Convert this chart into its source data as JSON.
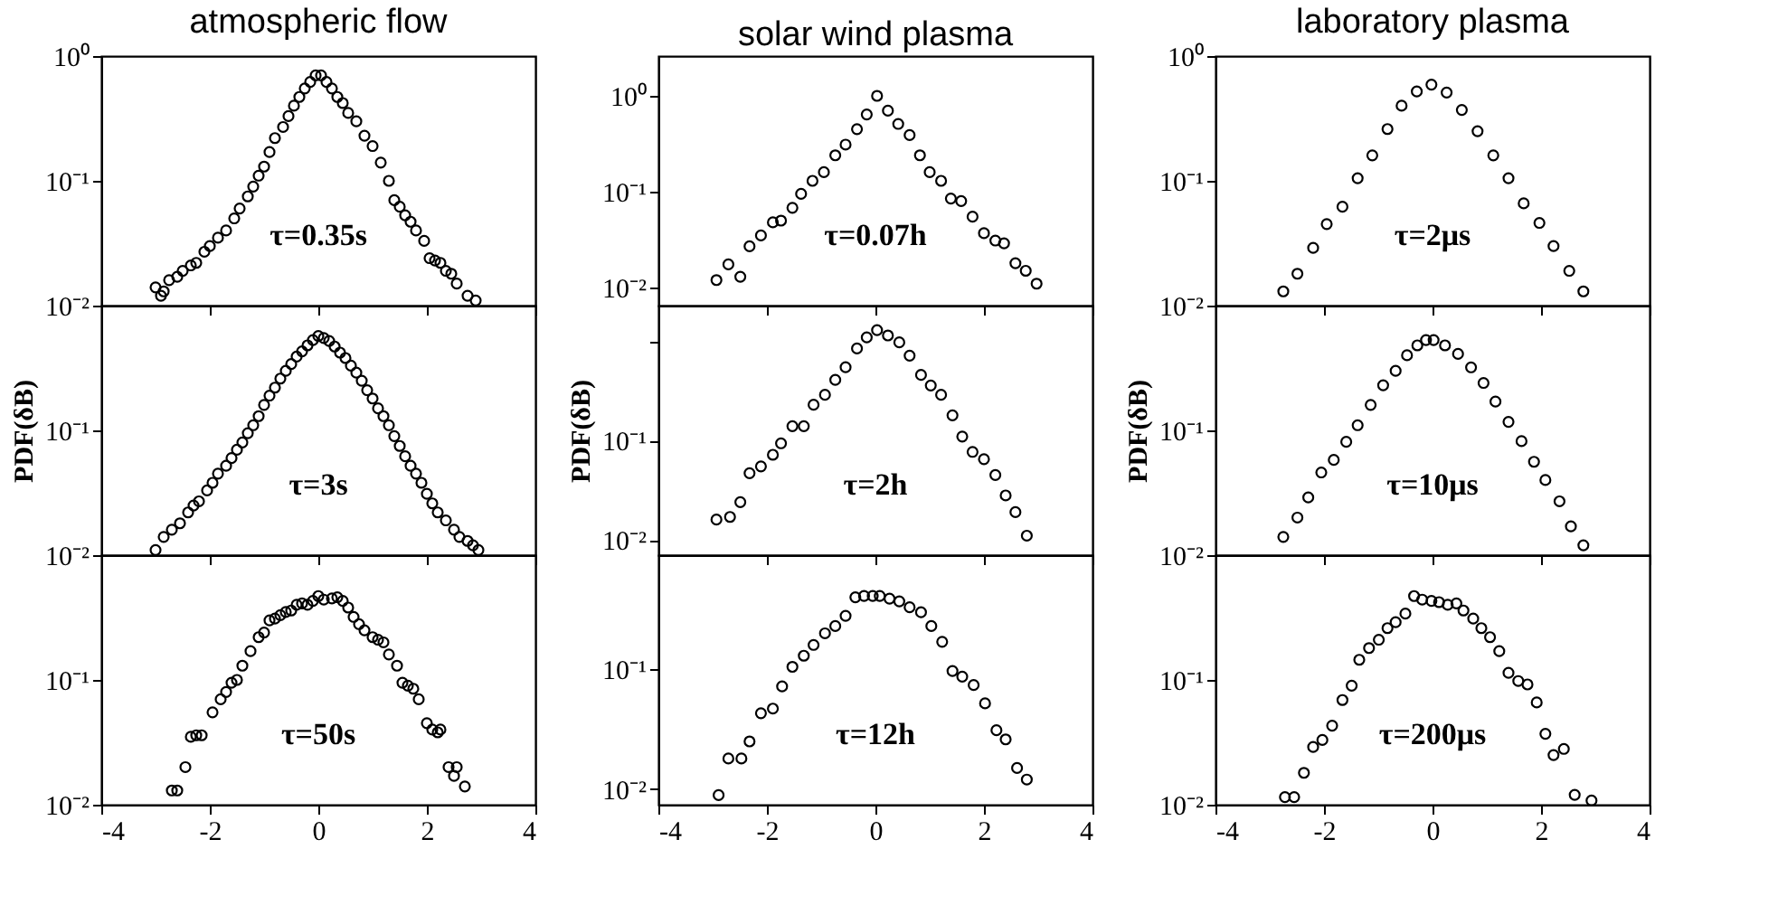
{
  "chart_data": [
    {
      "type": "scatter",
      "title": "atmospheric flow",
      "annotations": [
        "τ=0.35s"
      ],
      "marker": "circle",
      "tick_labels": "y",
      "xlim": [
        -4,
        4
      ],
      "xticks": [
        -4,
        -2,
        0,
        2,
        4
      ],
      "ylim": [
        0.01,
        1
      ],
      "log": true,
      "yticks": [
        {
          "value": 1,
          "label": "10⁰"
        },
        {
          "value": 0.1,
          "label": "10⁻¹"
        },
        {
          "value": 0.01,
          "label": "10⁻²"
        }
      ],
      "series": [
        {
          "color": "#000000",
          "x": [
            -3.0,
            -2.9,
            -2.85,
            -2.75,
            -2.6,
            -2.5,
            -2.35,
            -2.25,
            -2.1,
            -2.0,
            -1.85,
            -1.7,
            -1.55,
            -1.45,
            -1.3,
            -1.2,
            -1.1,
            -1.0,
            -0.9,
            -0.8,
            -0.65,
            -0.55,
            -0.45,
            -0.35,
            -0.25,
            -0.15,
            -0.05,
            0.05,
            0.15,
            0.25,
            0.35,
            0.45,
            0.55,
            0.7,
            0.85,
            1.0,
            1.15,
            1.3,
            1.4,
            1.5,
            1.6,
            1.7,
            1.8,
            1.95,
            2.05,
            2.15,
            2.25,
            2.35,
            2.45,
            2.55,
            2.75,
            2.9
          ],
          "values": [
            0.014,
            0.012,
            0.013,
            0.016,
            0.017,
            0.019,
            0.021,
            0.022,
            0.027,
            0.03,
            0.035,
            0.04,
            0.05,
            0.06,
            0.075,
            0.09,
            0.11,
            0.13,
            0.17,
            0.22,
            0.27,
            0.33,
            0.4,
            0.47,
            0.55,
            0.62,
            0.7,
            0.7,
            0.62,
            0.55,
            0.47,
            0.42,
            0.35,
            0.3,
            0.23,
            0.19,
            0.14,
            0.1,
            0.07,
            0.062,
            0.053,
            0.047,
            0.04,
            0.033,
            0.024,
            0.023,
            0.022,
            0.019,
            0.018,
            0.015,
            0.012,
            0.011
          ]
        }
      ]
    },
    {
      "type": "scatter",
      "title": "solar wind plasma",
      "annotations": [
        "τ=0.07h"
      ],
      "marker": "circle",
      "tick_labels": "y",
      "xlim": [
        -4,
        4
      ],
      "xticks": [
        -4,
        -2,
        0,
        2,
        4
      ],
      "ylim": [
        0.0065,
        2.6
      ],
      "log": true,
      "yticks": [
        {
          "value": 1,
          "label": "10⁰"
        },
        {
          "value": 0.1,
          "label": "10⁻¹"
        },
        {
          "value": 0.01,
          "label": "10⁻²"
        }
      ],
      "series": [
        {
          "color": "#000000",
          "x": [
            -2.93,
            -2.71,
            -2.49,
            -2.32,
            -2.11,
            -1.89,
            -1.74,
            -1.53,
            -1.37,
            -1.16,
            -0.95,
            -0.74,
            -0.55,
            -0.34,
            -0.16,
            0.03,
            0.23,
            0.42,
            0.63,
            0.82,
            1.0,
            1.21,
            1.39,
            1.58,
            1.79,
            2.0,
            2.21,
            2.37,
            2.58,
            2.77,
            2.97
          ],
          "values": [
            0.012,
            0.0175,
            0.013,
            0.027,
            0.035,
            0.048,
            0.05,
            0.068,
            0.095,
            0.13,
            0.16,
            0.24,
            0.31,
            0.45,
            0.64,
            1.0,
            0.7,
            0.51,
            0.39,
            0.24,
            0.16,
            0.13,
            0.085,
            0.08,
            0.055,
            0.037,
            0.031,
            0.029,
            0.018,
            0.015,
            0.011
          ]
        }
      ]
    },
    {
      "type": "scatter",
      "title": "laboratory plasma",
      "annotations": [
        "τ=2μs"
      ],
      "marker": "circle",
      "tick_labels": "y",
      "xlim": [
        -4,
        4
      ],
      "xticks": [
        -4,
        -2,
        0,
        2,
        4
      ],
      "ylim": [
        0.01,
        1
      ],
      "log": true,
      "yticks": [
        {
          "value": 1,
          "label": "10⁰"
        },
        {
          "value": 0.1,
          "label": "10⁻¹"
        },
        {
          "value": 0.01,
          "label": "10⁻²"
        }
      ],
      "series": [
        {
          "color": "#000000",
          "x": [
            -2.75,
            -2.49,
            -2.2,
            -1.95,
            -1.66,
            -1.38,
            -1.11,
            -0.83,
            -0.57,
            -0.29,
            -0.02,
            0.26,
            0.54,
            0.83,
            1.12,
            1.4,
            1.68,
            1.97,
            2.23,
            2.52,
            2.78
          ],
          "values": [
            0.013,
            0.018,
            0.029,
            0.045,
            0.062,
            0.105,
            0.16,
            0.26,
            0.4,
            0.52,
            0.59,
            0.51,
            0.37,
            0.25,
            0.16,
            0.105,
            0.066,
            0.046,
            0.03,
            0.019,
            0.013
          ]
        }
      ]
    },
    {
      "type": "scatter",
      "ylabel": "PDF(δB)",
      "annotations": [
        "τ=3s"
      ],
      "marker": "circle",
      "tick_labels": "y",
      "xlim": [
        -4,
        4
      ],
      "xticks": [
        -4,
        -2,
        0,
        2,
        4
      ],
      "ylim": [
        0.01,
        1
      ],
      "log": true,
      "yticks": [
        {
          "value": 1,
          "label": null
        },
        {
          "value": 0.1,
          "label": "10⁻¹"
        },
        {
          "value": 0.01,
          "label": "10⁻²"
        }
      ],
      "series": [
        {
          "color": "#000000",
          "x": [
            -3.0,
            -2.85,
            -2.7,
            -2.55,
            -2.4,
            -2.3,
            -2.2,
            -2.05,
            -1.95,
            -1.85,
            -1.7,
            -1.6,
            -1.5,
            -1.4,
            -1.3,
            -1.2,
            -1.1,
            -1.0,
            -0.9,
            -0.8,
            -0.7,
            -0.6,
            -0.5,
            -0.4,
            -0.3,
            -0.2,
            -0.1,
            0,
            0.1,
            0.2,
            0.3,
            0.4,
            0.5,
            0.6,
            0.7,
            0.8,
            0.9,
            1.0,
            1.1,
            1.2,
            1.3,
            1.4,
            1.5,
            1.6,
            1.7,
            1.8,
            1.9,
            2.0,
            2.1,
            2.2,
            2.35,
            2.5,
            2.6,
            2.75,
            2.85,
            2.95
          ],
          "values": [
            0.011,
            0.014,
            0.016,
            0.018,
            0.022,
            0.025,
            0.027,
            0.033,
            0.038,
            0.045,
            0.052,
            0.06,
            0.07,
            0.08,
            0.095,
            0.11,
            0.13,
            0.16,
            0.19,
            0.22,
            0.26,
            0.3,
            0.34,
            0.39,
            0.43,
            0.48,
            0.53,
            0.57,
            0.55,
            0.52,
            0.47,
            0.42,
            0.38,
            0.33,
            0.29,
            0.25,
            0.21,
            0.18,
            0.15,
            0.13,
            0.11,
            0.09,
            0.075,
            0.062,
            0.052,
            0.045,
            0.038,
            0.031,
            0.026,
            0.022,
            0.019,
            0.016,
            0.014,
            0.013,
            0.012,
            0.011
          ]
        }
      ]
    },
    {
      "type": "scatter",
      "ylabel": "PDF(δB)",
      "annotations": [
        "τ=2h"
      ],
      "marker": "circle",
      "tick_labels": "y",
      "xlim": [
        -4,
        4
      ],
      "xticks": [
        -4,
        -2,
        0,
        2,
        4
      ],
      "ylim": [
        0.007,
        2.3
      ],
      "log": true,
      "yticks": [
        {
          "value": 1,
          "label": null
        },
        {
          "value": 0.1,
          "label": "10⁻¹"
        },
        {
          "value": 0.01,
          "label": "10⁻²"
        }
      ],
      "series": [
        {
          "color": "#000000",
          "x": [
            -2.93,
            -2.68,
            -2.49,
            -2.32,
            -2.11,
            -1.89,
            -1.74,
            -1.53,
            -1.32,
            -1.14,
            -0.93,
            -0.74,
            -0.55,
            -0.34,
            -0.16,
            0.03,
            0.23,
            0.44,
            0.63,
            0.84,
            1.02,
            1.21,
            1.42,
            1.6,
            1.79,
            2.0,
            2.21,
            2.4,
            2.58,
            2.79
          ],
          "values": [
            0.016,
            0.017,
            0.024,
            0.047,
            0.055,
            0.072,
            0.094,
            0.14,
            0.14,
            0.23,
            0.29,
            0.41,
            0.55,
            0.85,
            1.1,
            1.3,
            1.15,
            0.98,
            0.72,
            0.46,
            0.36,
            0.29,
            0.18,
            0.11,
            0.077,
            0.065,
            0.045,
            0.028,
            0.019,
            0.011
          ]
        }
      ]
    },
    {
      "type": "scatter",
      "ylabel": "PDF(δB)",
      "annotations": [
        "τ=10μs"
      ],
      "marker": "circle",
      "tick_labels": "y",
      "xlim": [
        -4,
        4
      ],
      "xticks": [
        -4,
        -2,
        0,
        2,
        4
      ],
      "ylim": [
        0.01,
        1
      ],
      "log": true,
      "yticks": [
        {
          "value": 1,
          "label": null
        },
        {
          "value": 0.1,
          "label": "10⁻¹"
        },
        {
          "value": 0.01,
          "label": "10⁻²"
        }
      ],
      "series": [
        {
          "color": "#000000",
          "x": [
            -2.75,
            -2.49,
            -2.29,
            -2.05,
            -1.82,
            -1.59,
            -1.38,
            -1.14,
            -0.91,
            -0.68,
            -0.47,
            -0.28,
            -0.12,
            0.02,
            0.23,
            0.47,
            0.71,
            0.94,
            1.16,
            1.4,
            1.64,
            1.87,
            2.08,
            2.34,
            2.55,
            2.78
          ],
          "values": [
            0.014,
            0.02,
            0.029,
            0.046,
            0.058,
            0.081,
            0.11,
            0.16,
            0.23,
            0.3,
            0.4,
            0.48,
            0.53,
            0.53,
            0.48,
            0.41,
            0.32,
            0.24,
            0.17,
            0.117,
            0.082,
            0.056,
            0.04,
            0.027,
            0.017,
            0.012
          ]
        }
      ]
    },
    {
      "type": "scatter",
      "annotations": [
        "τ=50s"
      ],
      "marker": "circle",
      "xlim": [
        -4,
        4
      ],
      "xticks": [
        -4,
        -2,
        0,
        2,
        4
      ],
      "ylim": [
        0.01,
        1
      ],
      "log": true,
      "yticks": [
        {
          "value": 1,
          "label": null
        },
        {
          "value": 0.1,
          "label": "10⁻¹"
        },
        {
          "value": 0.01,
          "label": "10⁻²"
        }
      ],
      "series": [
        {
          "color": "#000000",
          "x": [
            -2.7,
            -2.6,
            -2.45,
            -2.35,
            -2.25,
            -2.15,
            -1.95,
            -1.8,
            -1.7,
            -1.6,
            -1.5,
            -1.4,
            -1.25,
            -1.1,
            -1.0,
            -0.9,
            -0.8,
            -0.7,
            -0.6,
            -0.5,
            -0.4,
            -0.3,
            -0.2,
            -0.1,
            0.0,
            0.1,
            0.25,
            0.35,
            0.45,
            0.55,
            0.65,
            0.75,
            0.85,
            1.0,
            1.1,
            1.2,
            1.3,
            1.45,
            1.55,
            1.65,
            1.75,
            1.85,
            2.0,
            2.1,
            2.2,
            2.25,
            2.4,
            2.5,
            2.55,
            2.7
          ],
          "values": [
            0.013,
            0.013,
            0.02,
            0.035,
            0.036,
            0.036,
            0.055,
            0.07,
            0.08,
            0.095,
            0.1,
            0.13,
            0.17,
            0.22,
            0.24,
            0.3,
            0.31,
            0.33,
            0.35,
            0.36,
            0.4,
            0.41,
            0.4,
            0.43,
            0.47,
            0.44,
            0.45,
            0.46,
            0.43,
            0.38,
            0.32,
            0.28,
            0.25,
            0.22,
            0.21,
            0.2,
            0.16,
            0.13,
            0.095,
            0.09,
            0.085,
            0.07,
            0.045,
            0.04,
            0.038,
            0.04,
            0.02,
            0.017,
            0.02,
            0.014
          ]
        }
      ]
    },
    {
      "type": "scatter",
      "annotations": [
        "τ=12h"
      ],
      "marker": "circle",
      "xlim": [
        -4,
        4
      ],
      "xticks": [
        -4,
        -2,
        0,
        2,
        4
      ],
      "ylim": [
        0.0074,
        0.9
      ],
      "log": true,
      "yticks": [
        {
          "value": 0.1,
          "label": "10⁻¹"
        },
        {
          "value": 0.01,
          "label": "10⁻²"
        }
      ],
      "series": [
        {
          "color": "#000000",
          "x": [
            -2.89,
            -2.71,
            -2.47,
            -2.32,
            -2.11,
            -1.89,
            -1.72,
            -1.53,
            -1.32,
            -1.14,
            -0.93,
            -0.74,
            -0.55,
            -0.37,
            -0.21,
            -0.05,
            0.08,
            0.26,
            0.44,
            0.63,
            0.84,
            1.03,
            1.23,
            1.42,
            1.6,
            1.81,
            2.02,
            2.23,
            2.4,
            2.61,
            2.79
          ],
          "values": [
            0.0089,
            0.018,
            0.018,
            0.025,
            0.043,
            0.047,
            0.072,
            0.105,
            0.13,
            0.16,
            0.2,
            0.23,
            0.28,
            0.4,
            0.41,
            0.41,
            0.41,
            0.39,
            0.37,
            0.33,
            0.3,
            0.23,
            0.17,
            0.097,
            0.087,
            0.074,
            0.052,
            0.031,
            0.026,
            0.015,
            0.012
          ]
        }
      ]
    },
    {
      "type": "scatter",
      "annotations": [
        "τ=200μs"
      ],
      "marker": "circle",
      "xlim": [
        -4,
        4
      ],
      "xticks": [
        -4,
        -2,
        0,
        2,
        4
      ],
      "ylim": [
        0.01,
        1
      ],
      "log": true,
      "yticks": [
        {
          "value": 1,
          "label": null
        },
        {
          "value": 0.1,
          "label": "10⁻¹"
        },
        {
          "value": 0.01,
          "label": "10⁻²"
        }
      ],
      "series": [
        {
          "color": "#000000",
          "x": [
            -2.72,
            -2.55,
            -2.37,
            -2.2,
            -2.03,
            -1.85,
            -1.66,
            -1.49,
            -1.35,
            -1.17,
            -0.99,
            -0.83,
            -0.68,
            -0.5,
            -0.34,
            -0.19,
            -0.02,
            0.12,
            0.28,
            0.44,
            0.57,
            0.75,
            0.9,
            1.06,
            1.23,
            1.4,
            1.58,
            1.75,
            1.92,
            2.08,
            2.23,
            2.42,
            2.62,
            2.93
          ],
          "values": [
            0.0115,
            0.0115,
            0.018,
            0.029,
            0.033,
            0.043,
            0.069,
            0.09,
            0.145,
            0.18,
            0.21,
            0.26,
            0.29,
            0.34,
            0.47,
            0.44,
            0.43,
            0.42,
            0.4,
            0.41,
            0.36,
            0.31,
            0.26,
            0.22,
            0.17,
            0.114,
            0.098,
            0.092,
            0.066,
            0.037,
            0.025,
            0.028,
            0.012,
            0.0108
          ]
        }
      ]
    }
  ]
}
